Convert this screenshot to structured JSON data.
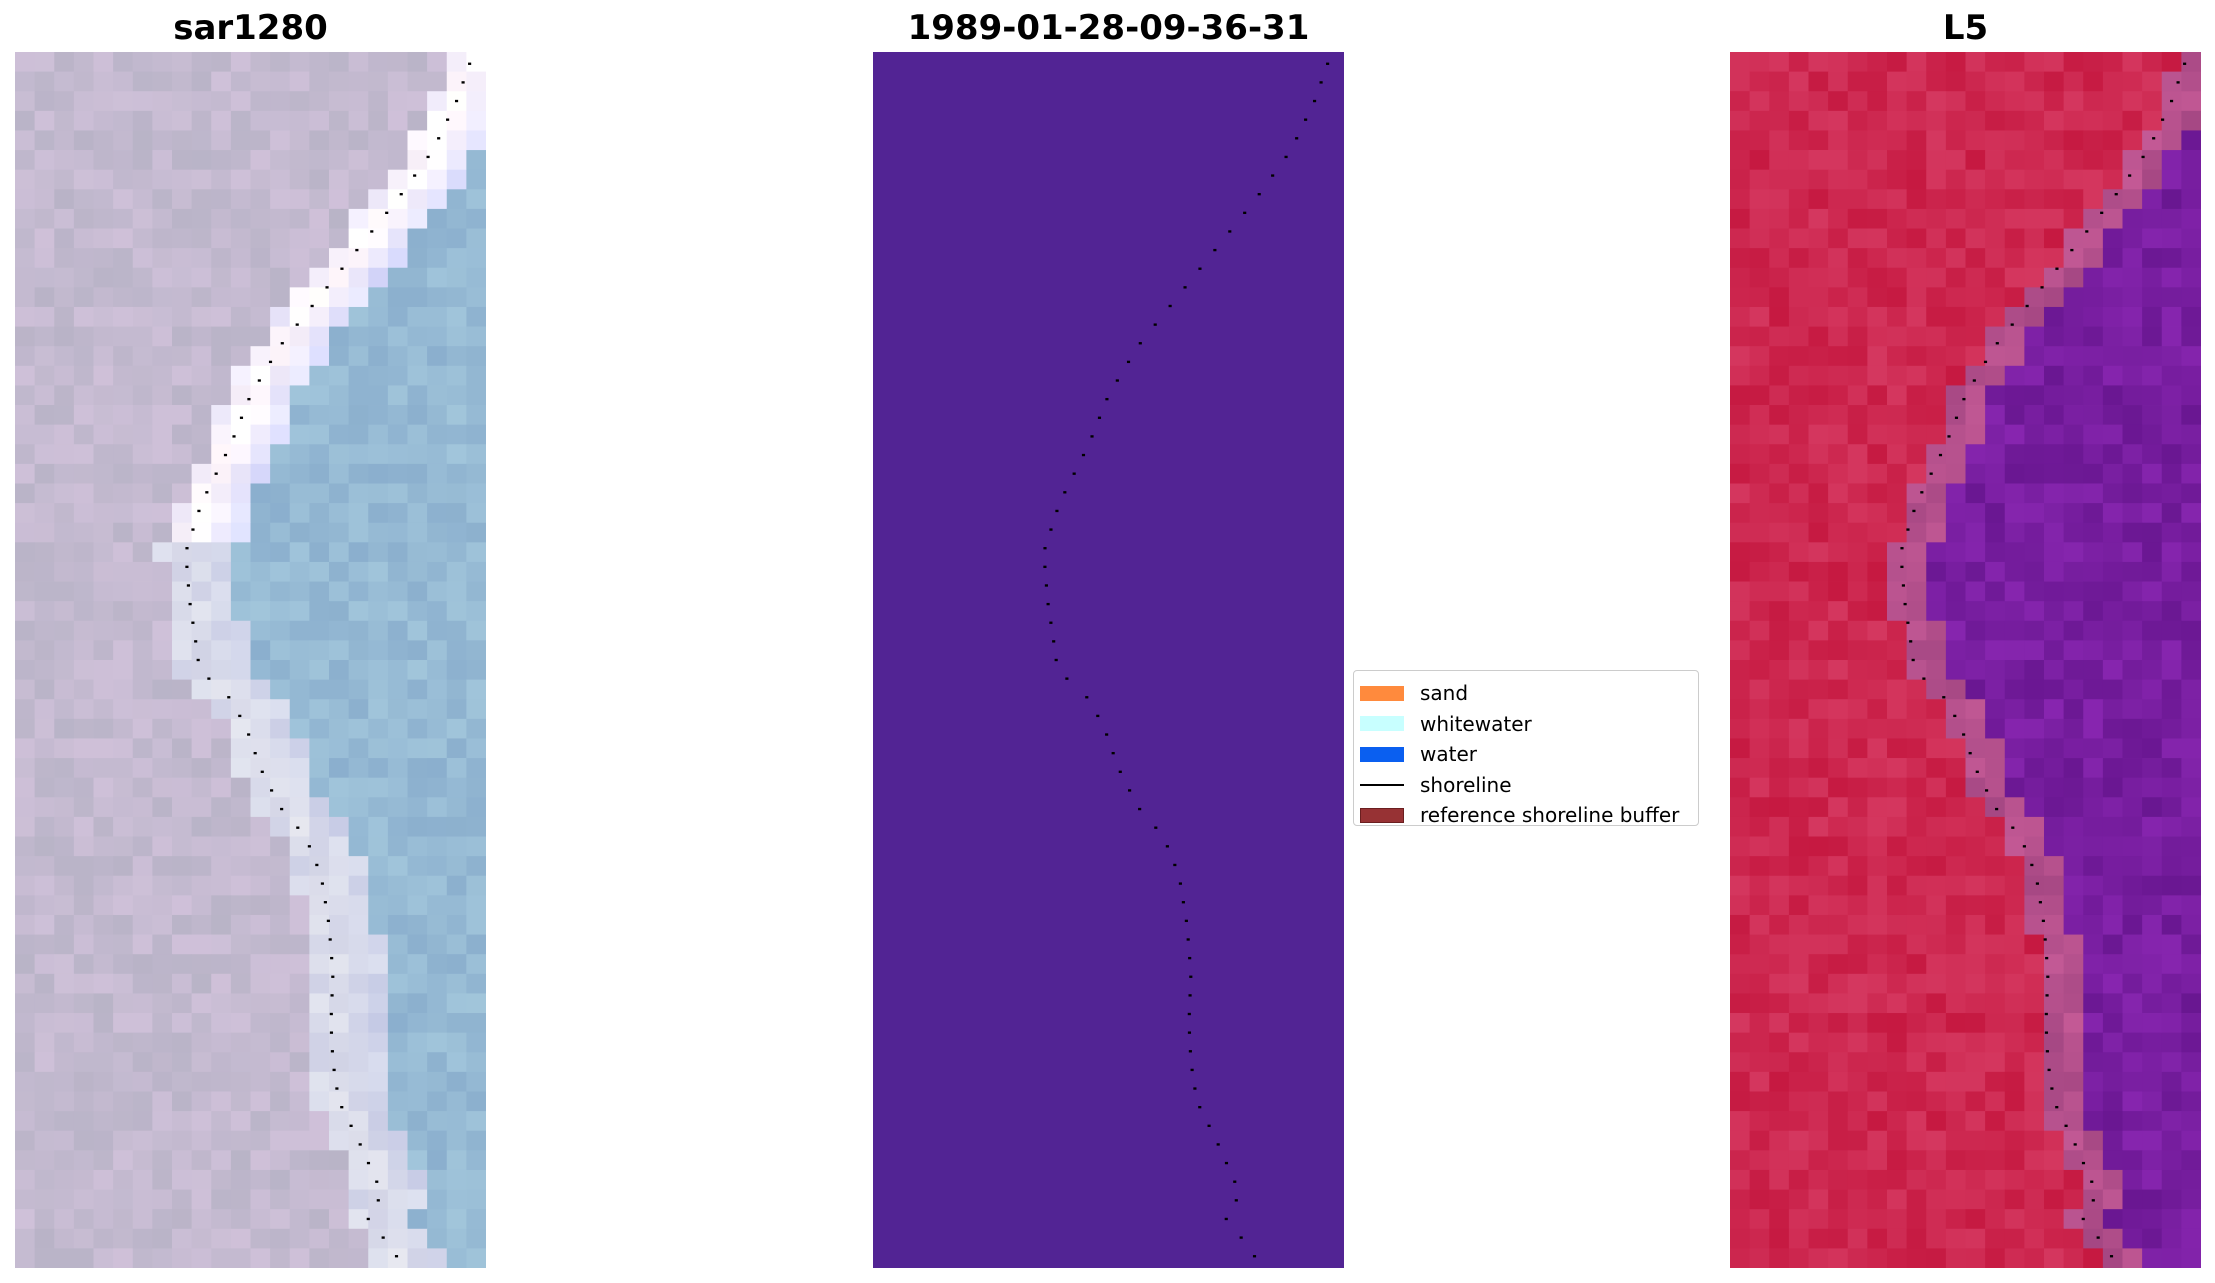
{
  "panels": [
    {
      "id": "left",
      "title": "sar1280"
    },
    {
      "id": "mid",
      "title": "1989-01-28-09-36-31"
    },
    {
      "id": "right",
      "title": "L5"
    }
  ],
  "legend": {
    "items": [
      {
        "label": "sand",
        "kind": "patch",
        "color": "#ff8a3d"
      },
      {
        "label": "whitewater",
        "kind": "patch",
        "color": "#c8ffff"
      },
      {
        "label": "water",
        "kind": "patch",
        "color": "#0a5ff0"
      },
      {
        "label": "shoreline",
        "kind": "line",
        "color": "#000000"
      },
      {
        "label": "reference shoreline buffer",
        "kind": "patch",
        "color": "#973234",
        "edge": "#6b1f20"
      }
    ]
  },
  "colors": {
    "classification_background": "#522494",
    "shoreline_dots": "#000000"
  }
}
